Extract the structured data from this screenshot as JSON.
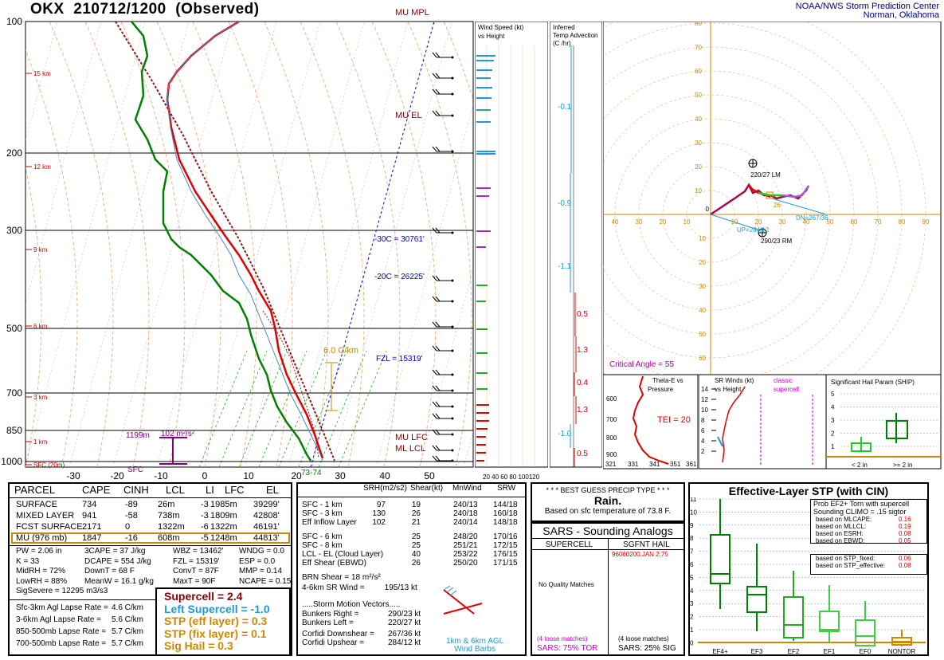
{
  "header": {
    "station": "OKX",
    "datetime": "210712/1200",
    "status": "(Observed)",
    "credit_line1": "NOAA/NWS Storm Prediction Center",
    "credit_line2": "Norman, Oklahoma"
  },
  "skewt": {
    "pressure_labels": [
      "100",
      "200",
      "300",
      "500",
      "700",
      "850",
      "1000"
    ],
    "height_labels": [
      "15 km",
      "12 km",
      "9 km",
      "6 km",
      "3 km",
      "1 km",
      "SFC (20m)"
    ],
    "temp_labels": [
      "-30",
      "-20",
      "-10",
      "0",
      "10",
      "20",
      "30",
      "40",
      "50"
    ],
    "annotations": {
      "mu_mpl": "MU MPL",
      "mu_el": "MU EL",
      "mu_lfc": "MU LFC",
      "ml_lcl": "ML LCL",
      "m30c": "-30C = 30761'",
      "m20c": "-20C = 26225'",
      "fzl": "FZL = 15319'",
      "lapse": "6.0 C/km",
      "srh_height": "1199m",
      "srh_value": "102 m²/s²",
      "sfc": "SFC",
      "sfc_temps": "73-74"
    }
  },
  "wind_panel": {
    "title1": "Wind Speed (kt)",
    "title2": "vs Height",
    "axis": "20 40 60 80 100120"
  },
  "temp_adv": {
    "title1": "Inferred",
    "title2": "Temp Advection",
    "title3": "(C /hr)",
    "values": [
      "-0.1",
      "-0.9",
      "-1.1",
      "0.5",
      "1.3",
      "0.4",
      "1.3",
      "-1.0",
      "0.5"
    ]
  },
  "hodograph": {
    "ring_labels": [
      "90",
      "80",
      "70",
      "60",
      "50",
      "40",
      "30",
      "20",
      "10"
    ],
    "x_labels_left": [
      "40",
      "30",
      "20",
      "10"
    ],
    "x_labels_right": [
      "10",
      "20",
      "30",
      "40",
      "50",
      "60",
      "70",
      "80",
      "90"
    ],
    "y_labels_below": [
      "10",
      "20",
      "30",
      "40",
      "50",
      "60"
    ],
    "lm": "220/27 LM",
    "rm": "290/23 RM",
    "dn": "DN=267/36",
    "up": "UP=284/12",
    "mw": "26",
    "critical_angle": "Critical Angle = 55"
  },
  "theta_e": {
    "title1": "Theta-E vs",
    "title2": "Pressure",
    "tei": "TEI = 20",
    "y_ticks": [
      "600",
      "700",
      "800",
      "900"
    ],
    "x_ticks": [
      "321",
      "331",
      "341",
      "351",
      "361"
    ]
  },
  "sr_winds": {
    "title1": "SR Winds (kt)",
    "title2": "vs Height",
    "classic1": "classic",
    "classic2": "supercell",
    "y_ticks": [
      "14",
      "12",
      "10",
      "8",
      "6",
      "4",
      "2"
    ]
  },
  "ship": {
    "title": "Significant Hail Param (SHIP)",
    "y_ticks": [
      "5",
      "4",
      "3",
      "2",
      "1"
    ],
    "x_labels": [
      "< 2 in",
      ">= 2 in"
    ]
  },
  "parcel_table": {
    "headers": [
      "PARCEL",
      "CAPE",
      "CINH",
      "LCL",
      "LI",
      "LFC",
      "EL"
    ],
    "rows": [
      [
        "SURFACE",
        "734",
        "-89",
        "26m",
        "-3",
        "1985m",
        "39299'"
      ],
      [
        "MIXED LAYER",
        "941",
        "-58",
        "738m",
        "-3",
        "1809m",
        "42808'"
      ],
      [
        "FCST SURFACE",
        "2171",
        "0",
        "1322m",
        "-6",
        "1322m",
        "46191'"
      ],
      [
        "MU  (976 mb)",
        "1847",
        "-16",
        "608m",
        "-5",
        "1248m",
        "44813'"
      ]
    ],
    "indices_col1": [
      "PW = 2.06 in",
      "K = 33",
      "MidRH = 72%",
      "LowRH = 88%",
      "SigSevere = 12295 m3/s3"
    ],
    "indices_col2": [
      "3CAPE = 37 J/kg",
      "DCAPE = 554 J/kg",
      "DownT = 68 F",
      "MeanW = 16.1 g/kg"
    ],
    "indices_col3": [
      "WBZ = 13462'",
      "FZL = 15319'",
      "ConvT = 87F",
      "MaxT = 90F"
    ],
    "indices_col4": [
      "WNDG = 0.0",
      "ESP = 0.0",
      "MMP = 0.14",
      "NCAPE = 0.15"
    ],
    "lapse_rates": [
      [
        "Sfc-3km Agl Lapse Rate =",
        "4.6 C/km"
      ],
      [
        "3-6km Agl Lapse Rate =",
        "5.6 C/km"
      ],
      [
        "850-500mb Lapse Rate =",
        "5.7 C/km"
      ],
      [
        "700-500mb Lapse Rate =",
        "5.7 C/km"
      ]
    ],
    "composites": [
      {
        "label": "Supercell = 2.4",
        "color": "#8b0000"
      },
      {
        "label": "Left Supercell = -1.0",
        "color": "#1e9ad6"
      },
      {
        "label": "STP (eff layer) = 0.3",
        "color": "#cc8800"
      },
      {
        "label": "STP (fix layer) = 0.1",
        "color": "#cc8800"
      },
      {
        "label": "Sig Hail = 0.3",
        "color": "#cc8800"
      }
    ]
  },
  "kinematics": {
    "headers": [
      "SRH(m2/s2)",
      "Shear(kt)",
      "MnWind",
      "SRW"
    ],
    "rows": [
      [
        "SFC - 1 km",
        "97",
        "19",
        "240/13",
        "144/18"
      ],
      [
        "SFC - 3 km",
        "130",
        "26",
        "240/18",
        "160/18"
      ],
      [
        "Eff Inflow Layer",
        "102",
        "21",
        "240/14",
        "148/18"
      ],
      [
        "SFC - 6 km",
        "",
        "25",
        "248/20",
        "170/16"
      ],
      [
        "SFC - 8 km",
        "",
        "25",
        "251/21",
        "172/15"
      ],
      [
        "LCL - EL (Cloud Layer)",
        "",
        "40",
        "253/22",
        "176/15"
      ],
      [
        "Eff Shear (EBWD)",
        "",
        "26",
        "250/20",
        "171/15"
      ]
    ],
    "brn": "BRN Shear =  18 m²/s²",
    "sr_wind": "4-6km SR Wind =         195/13 kt",
    "storm_motion": ".....Storm Motion Vectors.....",
    "bunkers_right": [
      "Bunkers Right =",
      "290/23 kt"
    ],
    "bunkers_left": [
      "Bunkers Left =",
      "220/27 kt"
    ],
    "corfidi_down": [
      "Corfidi Downshear =",
      "267/36 kt"
    ],
    "corfidi_up": [
      "Corfidi Upshear =",
      "284/12 kt"
    ],
    "barb_label1": "1km & 6km AGL",
    "barb_label2": "Wind Barbs"
  },
  "precip": {
    "title": "* * * BEST GUESS PRECIP TYPE * * *",
    "type": "Rain.",
    "based": "Based on sfc temperature of 73.8 F."
  },
  "analogs": {
    "title": "SARS - Sounding Analogs",
    "col1": "SUPERCELL",
    "col2": "SGFNT HAIL",
    "hail_match": "96060200.JAN   2.75",
    "no_quality": "No Quality Matches",
    "loose1": "(4 loose matches)",
    "loose2": "(4 loose matches)",
    "sars_tor": "SARS:  75% TOR",
    "sars_sig": "SARS:  25% SIG"
  },
  "stp_panel": {
    "title": "Effective-Layer STP (with CIN)",
    "y_ticks": [
      "11",
      "10",
      "9",
      "8",
      "7",
      "6",
      "5",
      "4",
      "3",
      "2",
      "1",
      "0"
    ],
    "x_labels": [
      "EF4+",
      "EF3",
      "EF2",
      "EF1",
      "EF0",
      "NONTOR"
    ],
    "prob_title1": "Prob EF2+ Torn with supercell",
    "prob_title2": "Sounding CLIMO = .15 sigtor",
    "probs": [
      [
        "based on MLCAPE:",
        "0.16"
      ],
      [
        "based on MLLCL:",
        "0.19"
      ],
      [
        "based on ESRH:",
        "0.08"
      ],
      [
        "based on EBWD:",
        "0.05"
      ]
    ],
    "probs2": [
      [
        "based on STP_fixed:",
        "0.06"
      ],
      [
        "based on STP_effective:",
        "0.08"
      ]
    ]
  }
}
